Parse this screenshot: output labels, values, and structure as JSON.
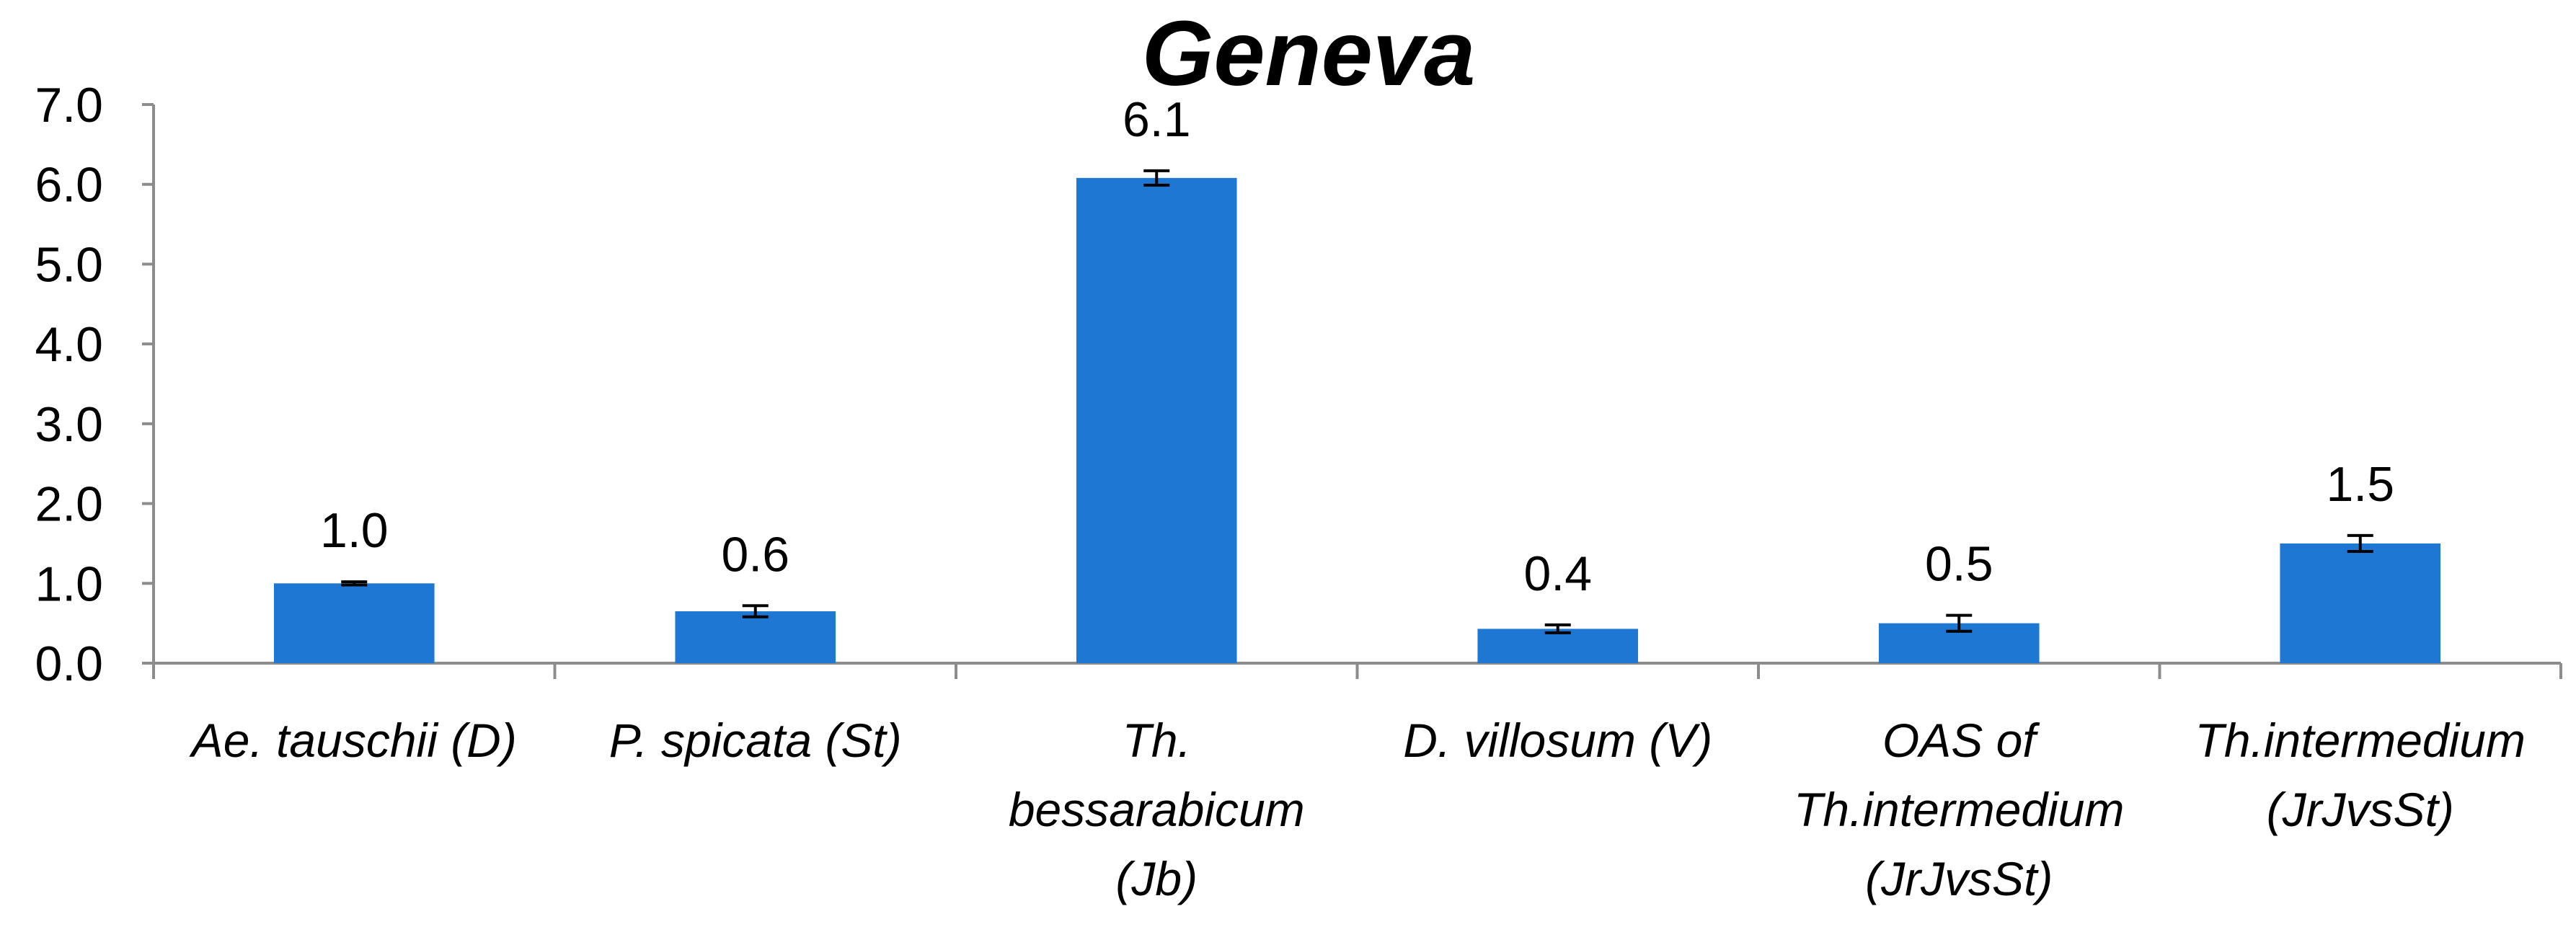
{
  "chart_data": {
    "type": "bar",
    "title": "Geneva",
    "xlabel": "",
    "ylabel": "",
    "ylim": [
      0,
      7
    ],
    "y_ticks": [
      "0.0",
      "1.0",
      "2.0",
      "3.0",
      "4.0",
      "5.0",
      "6.0",
      "7.0"
    ],
    "grid": false,
    "legend": "none",
    "bar_color": "#1f77d4",
    "categories": [
      [
        "Ae. tauschii (D)"
      ],
      [
        "P. spicata (St)"
      ],
      [
        "Th.",
        "bessarabicum",
        "(Jb)"
      ],
      [
        "D. villosum (V)"
      ],
      [
        "OAS of",
        "Th.intermedium",
        "(JrJvsSt)"
      ],
      [
        "Th.intermedium",
        "(JrJvsSt)"
      ]
    ],
    "values": [
      1.0,
      0.65,
      6.08,
      0.43,
      0.5,
      1.5
    ],
    "errors": [
      0.02,
      0.07,
      0.09,
      0.05,
      0.1,
      0.1
    ],
    "data_labels": [
      "1.0",
      "0.6",
      "6.1",
      "0.4",
      "0.5",
      "1.5"
    ]
  }
}
